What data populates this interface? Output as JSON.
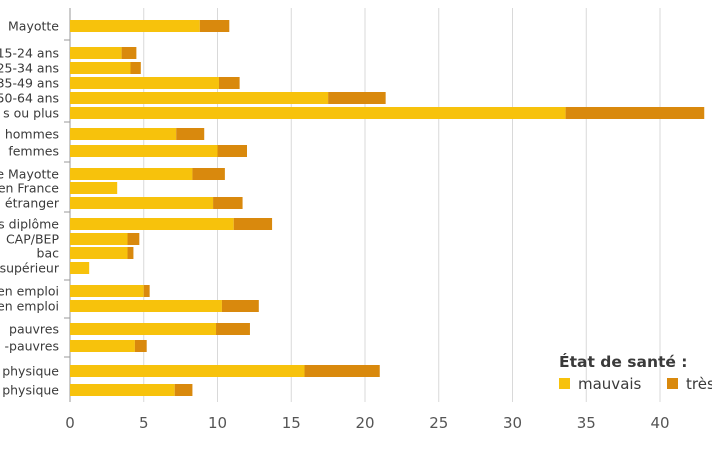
{
  "chart_data": {
    "type": "bar",
    "stacked": true,
    "orientation": "horizontal",
    "title": "",
    "xlabel": "",
    "ylabel": "",
    "xlim": [
      0,
      43
    ],
    "x_ticks": [
      0,
      5,
      10,
      15,
      20,
      25,
      30,
      35,
      40
    ],
    "grid": true,
    "legend": {
      "title": "État de santé :",
      "placement": "bottom-right",
      "entries": [
        {
          "label": "mauvais",
          "color": "#f7c20c"
        },
        {
          "label": "très",
          "color": "#d9890d"
        }
      ]
    },
    "groups": [
      {
        "bars": [
          {
            "label": "Mayotte",
            "values": [
              8.8,
              2.0
            ]
          }
        ]
      },
      {
        "bars": [
          {
            "label": "15-24 ans",
            "values": [
              3.5,
              1.0
            ]
          },
          {
            "label": "25-34 ans",
            "values": [
              4.1,
              0.7
            ]
          },
          {
            "label": "35-49 ans",
            "values": [
              10.1,
              1.4
            ]
          },
          {
            "label": "50-64 ans",
            "values": [
              17.5,
              3.9
            ]
          },
          {
            "label": "s ou plus",
            "values": [
              33.6,
              9.4
            ]
          }
        ]
      },
      {
        "bars": [
          {
            "label": "hommes",
            "values": [
              7.2,
              1.9
            ]
          },
          {
            "label": "femmes",
            "values": [
              10.0,
              2.0
            ]
          }
        ]
      },
      {
        "bars": [
          {
            "label": "e Mayotte",
            "values": [
              8.3,
              2.2
            ]
          },
          {
            "label": "en France",
            "values": [
              3.2,
              0.0
            ]
          },
          {
            "label": "étranger",
            "values": [
              9.7,
              2.0
            ]
          }
        ]
      },
      {
        "bars": [
          {
            "label": "s diplôme",
            "values": [
              11.1,
              2.6
            ]
          },
          {
            "label": "CAP/BEP",
            "values": [
              3.9,
              0.8
            ]
          },
          {
            "label": "bac",
            "values": [
              3.9,
              0.4
            ]
          },
          {
            "label": "supérieur",
            "values": [
              1.3,
              0.0
            ]
          }
        ]
      },
      {
        "bars": [
          {
            "label": "en emploi",
            "values": [
              5.0,
              0.4
            ]
          },
          {
            "label": "en emploi",
            "values": [
              10.3,
              2.5
            ]
          }
        ]
      },
      {
        "bars": [
          {
            "label": "pauvres",
            "values": [
              9.9,
              2.3
            ]
          },
          {
            "label": "-pauvres",
            "values": [
              4.4,
              0.8
            ]
          }
        ]
      },
      {
        "bars": [
          {
            "label": "physique",
            "values": [
              15.9,
              5.1
            ]
          },
          {
            "label": "physique",
            "values": [
              7.1,
              1.2
            ]
          }
        ]
      }
    ]
  }
}
